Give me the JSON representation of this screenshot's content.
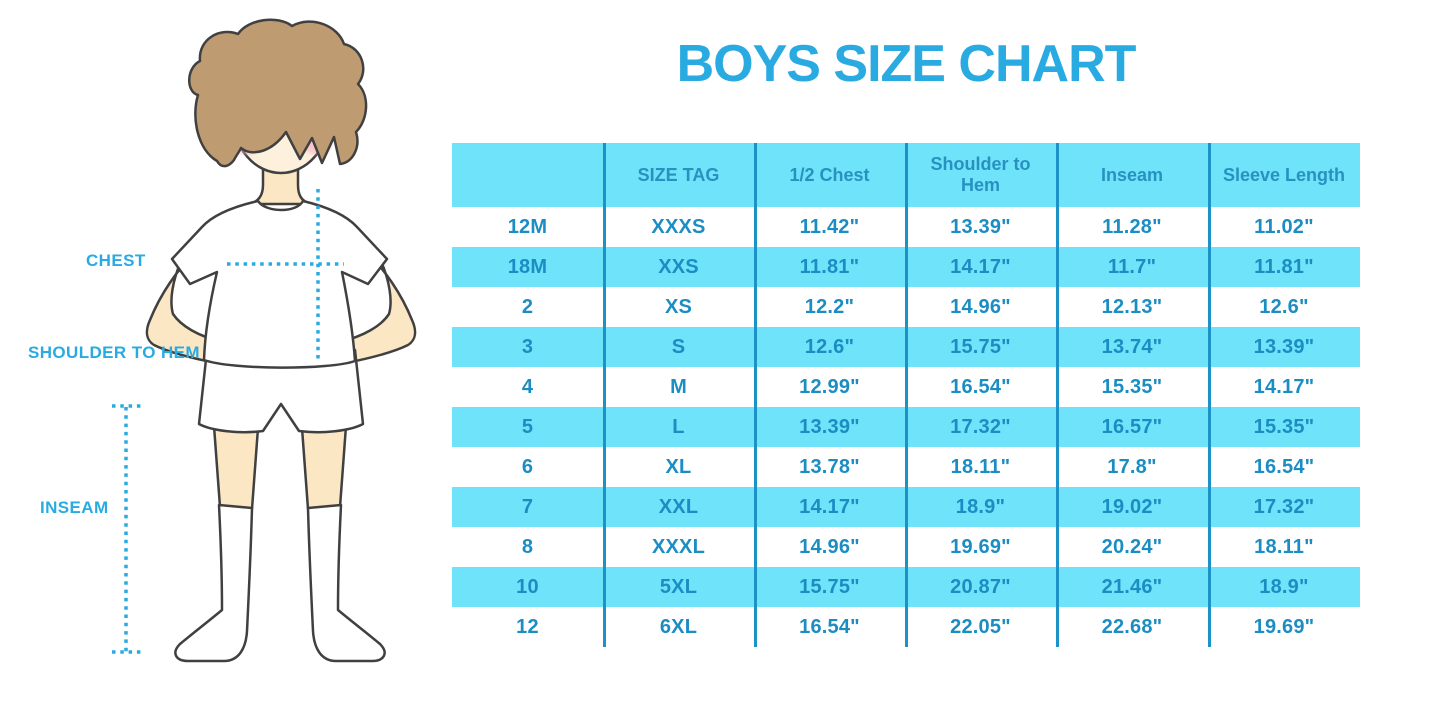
{
  "title": "BOYS SIZE CHART",
  "colors": {
    "accent": "#29ABE2",
    "table_fill": "#6FE3FA",
    "table_text": "#1B8DC3",
    "header_text": "#2792C0",
    "divider": "#1C93C6",
    "hair": "#BF9B72",
    "skin": "#FBE7C3",
    "face": "#FDF0DC",
    "blush": "#F2A9BE",
    "outline": "#404040"
  },
  "illustration": {
    "figure": "boy-with-measurement-lines",
    "labels": {
      "chest": "CHEST",
      "shoulder_to_hem": "SHOULDER TO HEM",
      "inseam": "INSEAM"
    }
  },
  "chart_data": {
    "type": "table",
    "title": "BOYS SIZE CHART",
    "columns": [
      "",
      "SIZE TAG",
      "1/2 Chest",
      "Shoulder to Hem",
      "Inseam",
      "Sleeve Length"
    ],
    "rows": [
      [
        "12M",
        "XXXS",
        "11.42\"",
        "13.39\"",
        "11.28\"",
        "11.02\""
      ],
      [
        "18M",
        "XXS",
        "11.81\"",
        "14.17\"",
        "11.7\"",
        "11.81\""
      ],
      [
        "2",
        "XS",
        "12.2\"",
        "14.96\"",
        "12.13\"",
        "12.6\""
      ],
      [
        "3",
        "S",
        "12.6\"",
        "15.75\"",
        "13.74\"",
        "13.39\""
      ],
      [
        "4",
        "M",
        "12.99\"",
        "16.54\"",
        "15.35\"",
        "14.17\""
      ],
      [
        "5",
        "L",
        "13.39\"",
        "17.32\"",
        "16.57\"",
        "15.35\""
      ],
      [
        "6",
        "XL",
        "13.78\"",
        "18.11\"",
        "17.8\"",
        "16.54\""
      ],
      [
        "7",
        "XXL",
        "14.17\"",
        "18.9\"",
        "19.02\"",
        "17.32\""
      ],
      [
        "8",
        "XXXL",
        "14.96\"",
        "19.69\"",
        "20.24\"",
        "18.11\""
      ],
      [
        "10",
        "5XL",
        "15.75\"",
        "20.87\"",
        "21.46\"",
        "18.9\""
      ],
      [
        "12",
        "6XL",
        "16.54\"",
        "22.05\"",
        "22.68\"",
        "19.69\""
      ]
    ]
  }
}
